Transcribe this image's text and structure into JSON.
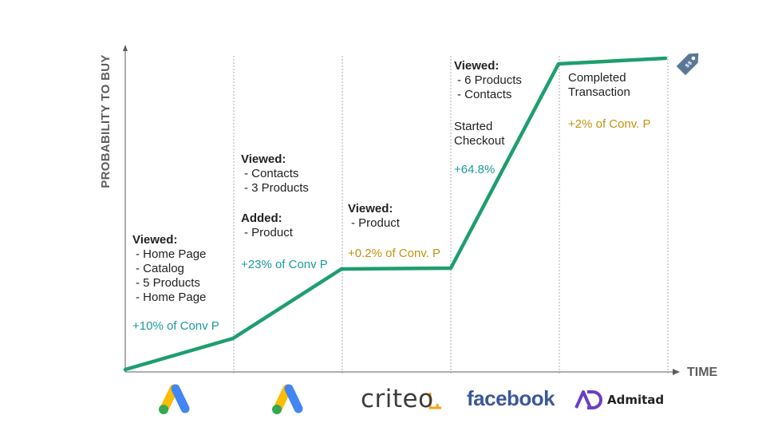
{
  "axes": {
    "y_label": "PROBABILITY TO BUY",
    "x_label": "TIME"
  },
  "colors": {
    "line": "#1e9e6f",
    "positive": "#1a9b9f",
    "minor": "#c2930e",
    "axis": "#5d5d5d"
  },
  "stages": [
    {
      "header": "Viewed:",
      "items": [
        "Home Page",
        "Catalog",
        "5 Products",
        "Home Page"
      ],
      "lift": "+10% of Conv P",
      "channel": "google-ads-icon"
    },
    {
      "header": "Viewed:",
      "items": [
        "Contacts",
        "3 Products"
      ],
      "header2": "Added:",
      "items2": [
        "Product"
      ],
      "lift": "+23% of Conv P",
      "channel": "google-ads-icon"
    },
    {
      "header": "Viewed:",
      "items": [
        "Product"
      ],
      "lift": "+0.2% of Conv. P",
      "channel": "criteo"
    },
    {
      "header": "Viewed:",
      "items": [
        "6 Products",
        "Contacts"
      ],
      "note_lines": [
        "Started",
        "Checkout"
      ],
      "lift": "+64.8%",
      "channel": "facebook"
    },
    {
      "note_lines": [
        "Completed",
        "Transaction"
      ],
      "lift": "+2% of Conv. P",
      "channel": "admitad"
    }
  ],
  "logos": {
    "criteo": "criteo",
    "criteo_dot": ".",
    "facebook": "facebook",
    "admitad": "Admitad"
  },
  "end_icon": "price-tag-icon"
}
